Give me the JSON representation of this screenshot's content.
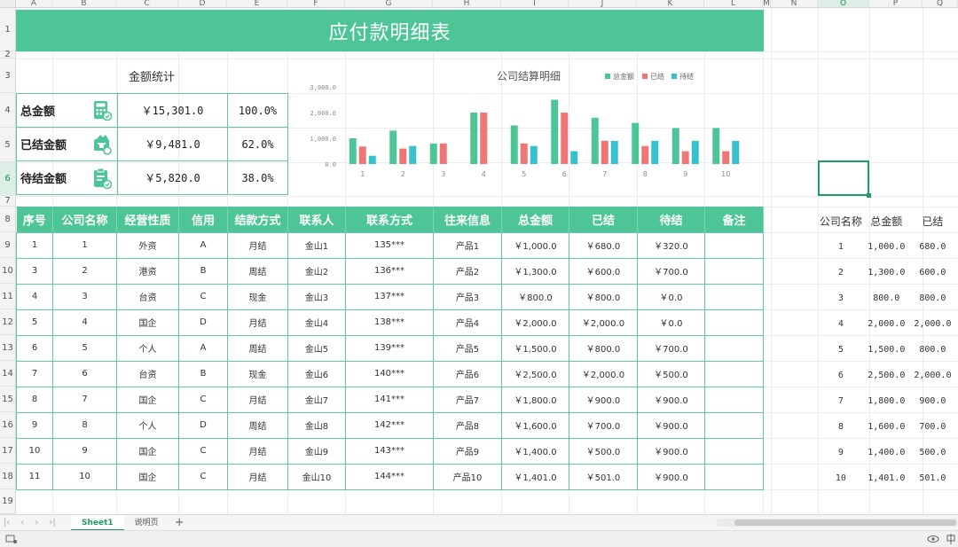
{
  "columns": [
    "A",
    "B",
    "C",
    "D",
    "E",
    "F",
    "G",
    "H",
    "I",
    "J",
    "K",
    "L",
    "M",
    "N",
    "O",
    "P",
    "Q"
  ],
  "rows": [
    "1",
    "2",
    "3",
    "4",
    "5",
    "6",
    "7",
    "8",
    "9",
    "10",
    "11",
    "12",
    "13",
    "14",
    "15",
    "16",
    "17",
    "18",
    "19"
  ],
  "title": "应付款明细表",
  "stats": {
    "title": "金额统计",
    "items": [
      {
        "label": "总金额",
        "amount": "￥15,301.0",
        "percent": "100.0%",
        "icon": "calculator-icon"
      },
      {
        "label": "已结金额",
        "amount": "￥9,481.0",
        "percent": "62.0%",
        "icon": "wallet-icon"
      },
      {
        "label": "待结金额",
        "amount": "￥5,820.0",
        "percent": "38.0%",
        "icon": "clipboard-icon"
      }
    ]
  },
  "chart_data": {
    "type": "bar",
    "title": "公司结算明细",
    "categories": [
      "1",
      "2",
      "3",
      "4",
      "5",
      "6",
      "7",
      "8",
      "9",
      "10"
    ],
    "series": [
      {
        "name": "总金额",
        "color": "#4dc597",
        "values": [
          1000,
          1300,
          800,
          2000,
          1500,
          2500,
          1800,
          1600,
          1400,
          1401
        ]
      },
      {
        "name": "已结",
        "color": "#f07676",
        "values": [
          680,
          600,
          800,
          2000,
          800,
          2000,
          900,
          700,
          500,
          501
        ]
      },
      {
        "name": "待结",
        "color": "#36c1cf",
        "values": [
          320,
          700,
          0,
          0,
          700,
          500,
          900,
          900,
          900,
          900
        ]
      }
    ],
    "ylim": [
      0,
      3000
    ],
    "yticks": [
      "0.0",
      "1,000.0",
      "2,000.0",
      "3,000.0"
    ],
    "legend": "top-right",
    "grid": false
  },
  "table": {
    "headers": [
      "序号",
      "公司名称",
      "经营性质",
      "信用",
      "结款方式",
      "联系人",
      "联系方式",
      "往来信息",
      "总金额",
      "已结",
      "待结",
      "备注"
    ],
    "rows": [
      [
        "1",
        "1",
        "外资",
        "A",
        "月结",
        "金山1",
        "135***",
        "产品1",
        "￥1,000.0",
        "￥680.0",
        "￥320.0",
        ""
      ],
      [
        "3",
        "2",
        "港资",
        "B",
        "周结",
        "金山2",
        "136***",
        "产品2",
        "￥1,300.0",
        "￥600.0",
        "￥700.0",
        ""
      ],
      [
        "4",
        "3",
        "台资",
        "C",
        "现金",
        "金山3",
        "137***",
        "产品3",
        "￥800.0",
        "￥800.0",
        "￥0.0",
        ""
      ],
      [
        "5",
        "4",
        "国企",
        "D",
        "月结",
        "金山4",
        "138***",
        "产品4",
        "￥2,000.0",
        "￥2,000.0",
        "￥0.0",
        ""
      ],
      [
        "6",
        "5",
        "个人",
        "A",
        "周结",
        "金山5",
        "139***",
        "产品5",
        "￥1,500.0",
        "￥800.0",
        "￥700.0",
        ""
      ],
      [
        "7",
        "6",
        "台资",
        "B",
        "现金",
        "金山6",
        "140***",
        "产品6",
        "￥2,500.0",
        "￥2,000.0",
        "￥500.0",
        ""
      ],
      [
        "8",
        "7",
        "国企",
        "C",
        "月结",
        "金山7",
        "141***",
        "产品7",
        "￥1,800.0",
        "￥900.0",
        "￥900.0",
        ""
      ],
      [
        "9",
        "8",
        "个人",
        "D",
        "周结",
        "金山8",
        "142***",
        "产品8",
        "￥1,600.0",
        "￥700.0",
        "￥900.0",
        ""
      ],
      [
        "10",
        "9",
        "国企",
        "C",
        "月结",
        "金山9",
        "143***",
        "产品9",
        "￥1,400.0",
        "￥500.0",
        "￥900.0",
        ""
      ],
      [
        "11",
        "10",
        "国企",
        "C",
        "月结",
        "金山10",
        "144***",
        "产品10",
        "￥1,401.0",
        "￥501.0",
        "￥900.0",
        ""
      ]
    ]
  },
  "side_table": {
    "headers": [
      "公司名称",
      "总金额",
      "已结"
    ],
    "rows": [
      [
        "1",
        "1,000.0",
        "680.0"
      ],
      [
        "2",
        "1,300.0",
        "600.0"
      ],
      [
        "3",
        "800.0",
        "800.0"
      ],
      [
        "4",
        "2,000.0",
        "2,000.0"
      ],
      [
        "5",
        "1,500.0",
        "800.0"
      ],
      [
        "6",
        "2,500.0",
        "2,000.0"
      ],
      [
        "7",
        "1,800.0",
        "900.0"
      ],
      [
        "8",
        "1,600.0",
        "700.0"
      ],
      [
        "9",
        "1,400.0",
        "500.0"
      ],
      [
        "10",
        "1,401.0",
        "501.0"
      ]
    ]
  },
  "tabs": [
    {
      "label": "Sheet1",
      "active": true
    },
    {
      "label": "说明页",
      "active": false
    }
  ],
  "tab_add_label": "+",
  "active_cell": {
    "column": "O",
    "row": "6"
  }
}
